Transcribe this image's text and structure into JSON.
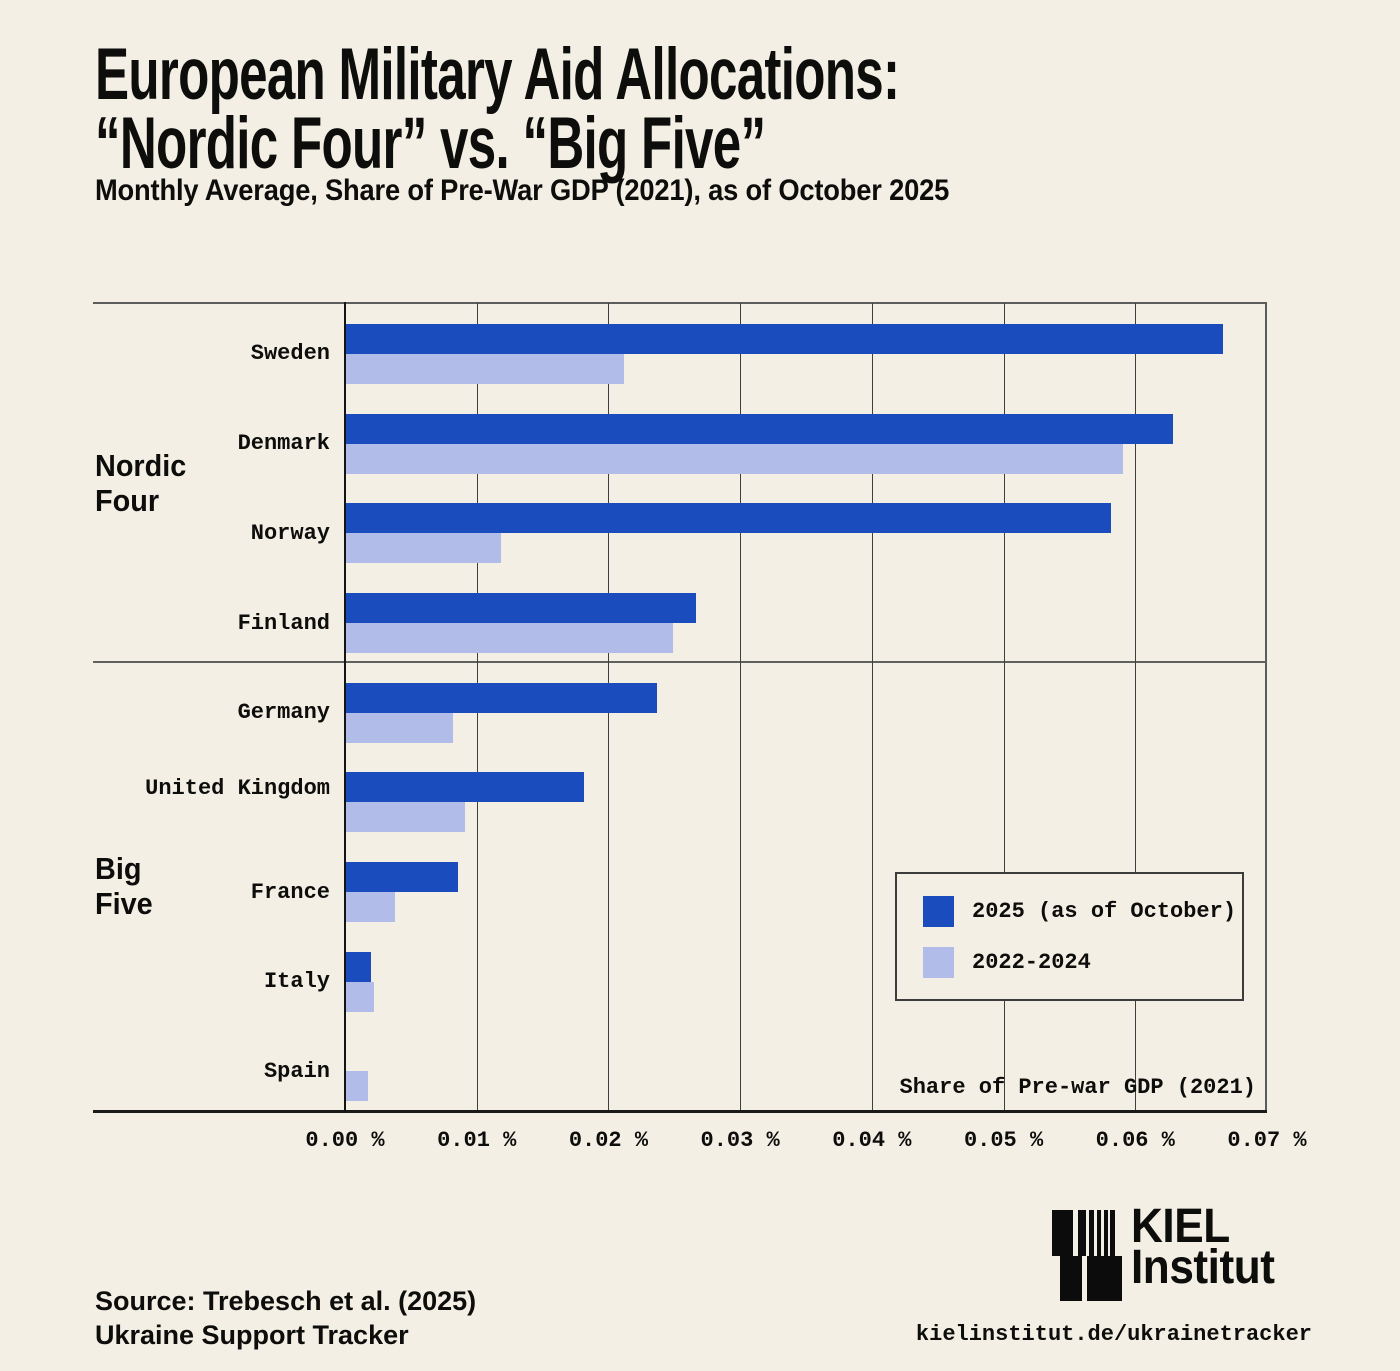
{
  "title": {
    "line1": "European Military Aid Allocations:",
    "line2": "“Nordic Four” vs. “Big Five”"
  },
  "subtitle": "Monthly Average, Share of Pre-War GDP (2021), as of October 2025",
  "chart_data": {
    "type": "bar",
    "orientation": "horizontal",
    "title": "European Military Aid Allocations: “Nordic Four” vs. “Big Five”",
    "xlabel": "Share of Pre-war GDP (2021)",
    "x_axis_annotation": "Share of Pre-war GDP (2021)",
    "xlim": [
      0,
      0.07
    ],
    "x_ticks": [
      "0.00 %",
      "0.01 %",
      "0.02 %",
      "0.03 %",
      "0.04 %",
      "0.05 %",
      "0.06 %",
      "0.07 %"
    ],
    "grid": true,
    "legend_position": "inside-right",
    "groups": [
      {
        "label": "Nordic Four",
        "label_lines": [
          "Nordic",
          "Four"
        ],
        "countries": [
          "Sweden",
          "Denmark",
          "Norway",
          "Finland"
        ]
      },
      {
        "label": "Big Five",
        "label_lines": [
          "Big",
          "Five"
        ],
        "countries": [
          "Germany",
          "United Kingdom",
          "France",
          "Italy",
          "Spain"
        ]
      }
    ],
    "categories": [
      "Sweden",
      "Denmark",
      "Norway",
      "Finland",
      "Germany",
      "United Kingdom",
      "France",
      "Italy",
      "Spain"
    ],
    "series": [
      {
        "name": "2025 (as of October)",
        "color": "#1a4cbe",
        "values": [
          0.0666,
          0.0628,
          0.0581,
          0.0266,
          0.0236,
          0.0181,
          0.0085,
          0.0019,
          0
        ]
      },
      {
        "name": "2022-2024",
        "color": "#b1bce8",
        "values": [
          0.0211,
          0.059,
          0.0118,
          0.0248,
          0.0081,
          0.009,
          0.0037,
          0.0021,
          0.0017
        ]
      }
    ]
  },
  "legend": {
    "items": [
      {
        "label": "2025 (as of October)",
        "color": "#1a4cbe"
      },
      {
        "label": "2022-2024",
        "color": "#b1bce8"
      }
    ]
  },
  "footer": {
    "source_line1": "Source: Trebesch et al. (2025)",
    "source_line2": "Ukraine Support Tracker",
    "url": "kielinstitut.de/ukrainetracker",
    "logo_line1": "KIEL",
    "logo_line2": "Institut"
  },
  "colors": {
    "background": "#f4efe4",
    "bar_2025": "#1a4cbe",
    "bar_2022_2024": "#b1bce8",
    "gridline": "#3f3f3f",
    "text": "#0d0d0c"
  }
}
